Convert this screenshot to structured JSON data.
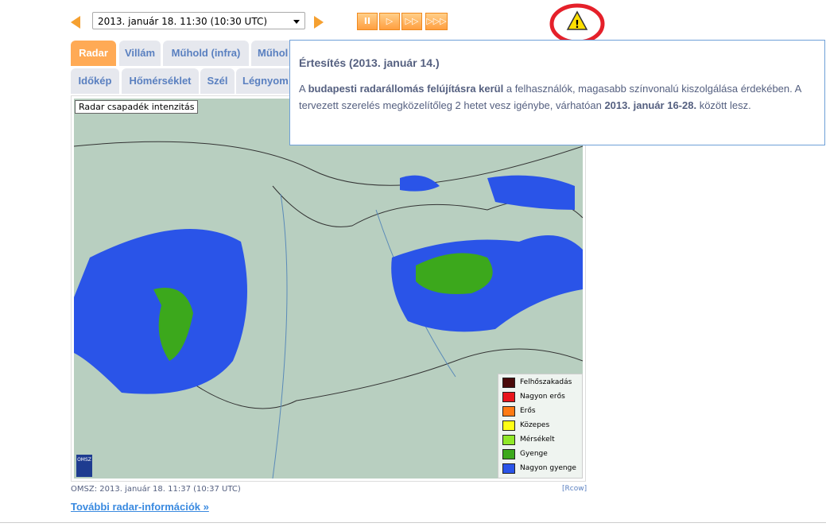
{
  "toolbar": {
    "date_value": "2013. január 18. 11:30 (10:30  UTC)",
    "prev_icon": "arrow-left-icon",
    "next_icon": "arrow-right-icon",
    "pause_label": "II",
    "play_label": "▷",
    "fast_label": "▷▷",
    "faster_label": "▷▷▷"
  },
  "alert": {
    "icon": "warning-icon",
    "highlight_color": "#e5202a"
  },
  "tabs_row1": [
    "Radar",
    "Villám",
    "Műhold (infra)",
    "Műhol"
  ],
  "tabs_row2": [
    "Időkép",
    "Hőmérséklet",
    "Szél",
    "Légnyom"
  ],
  "popup": {
    "title": "Értesítés (2013. január 14.)",
    "p1": "A ",
    "b1": "budapesti radarállomás felújításra kerül",
    "p2": " a felhasználók, magasabb színvonalú kiszolgálása érdekében. A tervezett szerelés megközelítőleg 2 hetet vesz igénybe, várhatóan ",
    "b2": "2013. január 16-28.",
    "p3": " között lesz."
  },
  "map": {
    "label": "Radar csapadék intenzitás",
    "logo": "OMSZ",
    "legend": [
      {
        "label": "Felhőszakadás",
        "color": "#4a0a0a"
      },
      {
        "label": "Nagyon erős",
        "color": "#e8141c"
      },
      {
        "label": "Erős",
        "color": "#ff7a14"
      },
      {
        "label": "Közepes",
        "color": "#ffff14"
      },
      {
        "label": "Mérsékelt",
        "color": "#90e828"
      },
      {
        "label": "Gyenge",
        "color": "#3ca81c"
      },
      {
        "label": "Nagyon gyenge",
        "color": "#2a54e8"
      }
    ]
  },
  "footer": {
    "timestamp": "OMSZ: 2013. január 18. 11:37 (10:37  UTC)",
    "credit": "[Rcow]",
    "more_link": "További radar-információk »"
  }
}
